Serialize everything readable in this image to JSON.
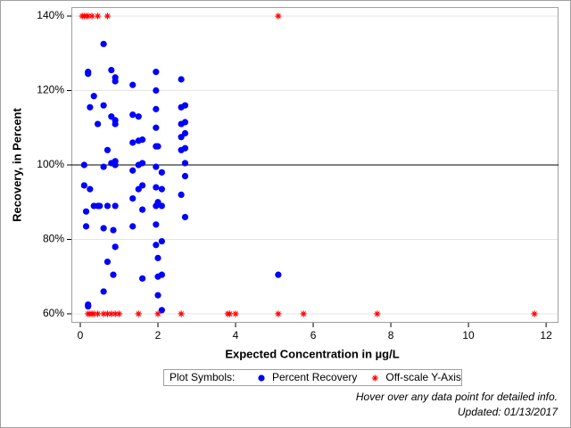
{
  "chart_data": {
    "type": "scatter",
    "x_label": "Expected Concentration in µg/L",
    "y_label": "Recovery, in Percent",
    "xlim": [
      -0.23,
      12.32
    ],
    "ylim": [
      57.6,
      142.4
    ],
    "xticks": [
      0,
      2,
      4,
      6,
      8,
      10,
      12
    ],
    "yticks": [
      {
        "value": 60,
        "label": "60%"
      },
      {
        "value": 80,
        "label": "80%"
      },
      {
        "value": 100,
        "label": "100%"
      },
      {
        "value": 120,
        "label": "120%"
      },
      {
        "value": 140,
        "label": "140%"
      }
    ],
    "grid": true,
    "reference_line": 100,
    "legend_title": "Plot Symbols:",
    "series": [
      {
        "name": "Percent Recovery",
        "color": "#0000ff",
        "marker": "circle",
        "x": [
          0.1,
          0.1,
          0.15,
          0.15,
          0.2,
          0.2,
          0.2,
          0.2,
          0.25,
          0.25,
          0.35,
          0.35,
          0.45,
          0.45,
          0.5,
          0.6,
          0.6,
          0.6,
          0.6,
          0.6,
          0.7,
          0.7,
          0.7,
          0.8,
          0.8,
          0.8,
          0.85,
          0.85,
          0.9,
          0.9,
          0.9,
          0.9,
          0.9,
          0.9,
          0.9,
          0.9,
          1.35,
          1.35,
          1.35,
          1.35,
          1.35,
          1.35,
          1.5,
          1.5,
          1.5,
          1.5,
          1.6,
          1.6,
          1.6,
          1.6,
          1.6,
          1.95,
          1.95,
          1.95,
          1.95,
          1.95,
          1.95,
          1.95,
          1.95,
          1.95,
          1.95,
          2.0,
          2.0,
          2.0,
          2.0,
          2.0,
          2.1,
          2.1,
          2.1,
          2.1,
          2.1,
          2.1,
          2.6,
          2.6,
          2.6,
          2.6,
          2.6,
          2.6,
          2.7,
          2.7,
          2.7,
          2.7,
          2.7,
          2.7,
          2.7,
          5.1
        ],
        "y": [
          100,
          94.5,
          87.5,
          83.5,
          124.5,
          125,
          62.5,
          62,
          115.5,
          93.5,
          118.5,
          89,
          111,
          89,
          89,
          132.5,
          116,
          99.5,
          83,
          66,
          104,
          89,
          74,
          125.5,
          113,
          100.5,
          82.5,
          70.5,
          123.5,
          122.5,
          112,
          111,
          101,
          100,
          89,
          78,
          121.5,
          113.5,
          106,
          98.5,
          91,
          83.5,
          113,
          106.5,
          100,
          93.5,
          106.8,
          100.5,
          94.5,
          88,
          69.5,
          125,
          120,
          115,
          110,
          105,
          99.5,
          94,
          89,
          84,
          78.5,
          105,
          90,
          75,
          70,
          65,
          98,
          93.5,
          89,
          79.5,
          70.5,
          61,
          123,
          115.5,
          111,
          107.5,
          104,
          92,
          116,
          111.5,
          108.5,
          104.5,
          100.5,
          97,
          86,
          70.5
        ]
      },
      {
        "name": "Off-scale Y-Axis",
        "color": "#ff0000",
        "marker": "asterisk",
        "x": [
          0.05,
          0.1,
          0.15,
          0.2,
          0.3,
          0.45,
          0.7,
          5.1,
          0.2,
          0.25,
          0.3,
          0.35,
          0.45,
          0.6,
          0.7,
          0.8,
          0.9,
          1.0,
          1.5,
          2.0,
          2.6,
          3.8,
          3.85,
          4.0,
          5.1,
          5.75,
          7.65,
          11.7
        ],
        "y": [
          140,
          140,
          140,
          140,
          140,
          140,
          140,
          140,
          60,
          60,
          60,
          60,
          60,
          60,
          60,
          60,
          60,
          60,
          60,
          60,
          60,
          60,
          60,
          60,
          60,
          60,
          60,
          60
        ]
      }
    ],
    "notes": [
      "Hover over any data point for detailed info.",
      "Updated: 01/13/2017"
    ]
  }
}
